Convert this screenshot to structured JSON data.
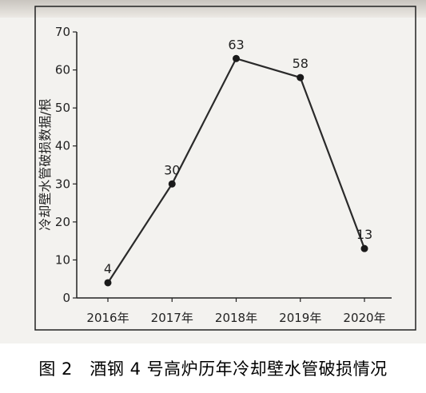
{
  "chart_data": {
    "type": "line",
    "categories": [
      "2016年",
      "2017年",
      "2018年",
      "2019年",
      "2020年"
    ],
    "values": [
      4,
      30,
      63,
      58,
      13
    ],
    "data_labels": [
      "4",
      "30",
      "63",
      "58",
      "13"
    ],
    "ylabel": "冷却壁水管破损数据/根",
    "xlabel": "",
    "ylim": [
      0,
      70
    ],
    "yticks": [
      0,
      10,
      20,
      30,
      40,
      50,
      60,
      70
    ],
    "ytick_labels": [
      "0",
      "10",
      "20",
      "30",
      "40",
      "50",
      "60",
      "70"
    ],
    "grid": false,
    "legend": "none"
  },
  "caption": "图 2　酒钢 4 号高炉历年冷却壁水管破损情况",
  "colors": {
    "line": "#2a2a2a",
    "marker": "#1a1a1a",
    "axis": "#222222",
    "background": "#f3f2ef"
  }
}
